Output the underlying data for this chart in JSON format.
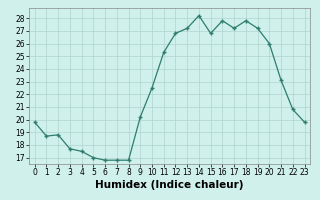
{
  "x": [
    0,
    1,
    2,
    3,
    4,
    5,
    6,
    7,
    8,
    9,
    10,
    11,
    12,
    13,
    14,
    15,
    16,
    17,
    18,
    19,
    20,
    21,
    22,
    23
  ],
  "y": [
    19.8,
    18.7,
    18.8,
    17.7,
    17.5,
    17.0,
    16.8,
    16.8,
    16.8,
    20.2,
    22.5,
    25.3,
    26.8,
    27.2,
    28.2,
    26.8,
    27.8,
    27.2,
    27.8,
    27.2,
    26.0,
    23.1,
    20.8,
    19.8
  ],
  "xlim": [
    -0.5,
    23.5
  ],
  "ylim": [
    16.5,
    28.8
  ],
  "yticks": [
    17,
    18,
    19,
    20,
    21,
    22,
    23,
    24,
    25,
    26,
    27,
    28
  ],
  "xticks": [
    0,
    1,
    2,
    3,
    4,
    5,
    6,
    7,
    8,
    9,
    10,
    11,
    12,
    13,
    14,
    15,
    16,
    17,
    18,
    19,
    20,
    21,
    22,
    23
  ],
  "xlabel": "Humidex (Indice chaleur)",
  "line_color": "#2e7d6e",
  "marker": "+",
  "bg_color": "#cff0eb",
  "grid_color": "#b0d4ce",
  "tick_label_fontsize": 5.5,
  "xlabel_fontsize": 7.5
}
